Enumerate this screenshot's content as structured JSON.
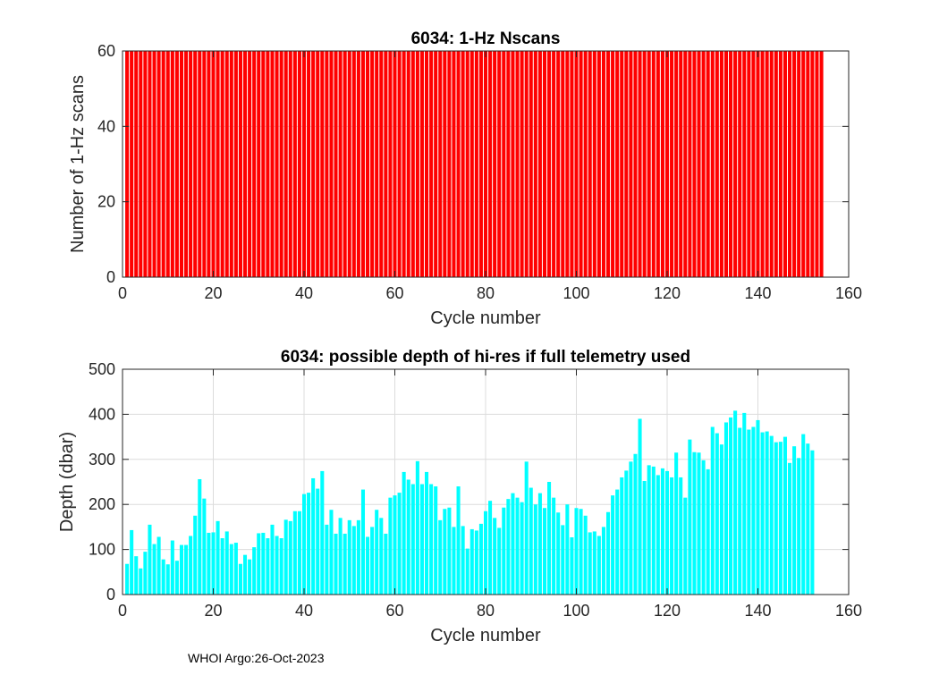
{
  "chart_data": [
    {
      "type": "bar",
      "title": "6034: 1-Hz Nscans",
      "xlabel": "Cycle number",
      "ylabel": "Number of 1-Hz scans",
      "xlim": [
        0,
        160
      ],
      "ylim": [
        0,
        60
      ],
      "xticks": [
        0,
        20,
        40,
        60,
        80,
        100,
        120,
        140,
        160
      ],
      "yticks": [
        0,
        20,
        40,
        60
      ],
      "grid": true,
      "color": "#ff0000",
      "n_cycles": 154,
      "constant_value": 60
    },
    {
      "type": "bar",
      "title": "6034: possible depth of hi-res if full telemetry used",
      "xlabel": "Cycle number",
      "ylabel": "Depth (dbar)",
      "xlim": [
        0,
        160
      ],
      "ylim": [
        0,
        500
      ],
      "xticks": [
        0,
        20,
        40,
        60,
        80,
        100,
        120,
        140,
        160
      ],
      "yticks": [
        0,
        100,
        200,
        300,
        400,
        500
      ],
      "grid": true,
      "color": "#00ffff",
      "values": [
        68,
        143,
        85,
        58,
        95,
        155,
        112,
        128,
        78,
        67,
        120,
        75,
        110,
        110,
        130,
        175,
        256,
        213,
        137,
        138,
        163,
        125,
        140,
        112,
        115,
        68,
        88,
        78,
        105,
        136,
        137,
        125,
        155,
        130,
        125,
        166,
        163,
        185,
        185,
        223,
        226,
        258,
        235,
        274,
        155,
        188,
        135,
        170,
        135,
        165,
        152,
        165,
        233,
        128,
        150,
        188,
        170,
        135,
        215,
        220,
        226,
        272,
        255,
        245,
        296,
        245,
        272,
        245,
        240,
        165,
        190,
        193,
        150,
        240,
        152,
        102,
        145,
        142,
        157,
        185,
        208,
        170,
        148,
        193,
        212,
        225,
        215,
        205,
        295,
        237,
        200,
        225,
        192,
        250,
        215,
        182,
        154,
        200,
        127,
        192,
        190,
        175,
        138,
        140,
        130,
        150,
        183,
        220,
        233,
        260,
        275,
        295,
        312,
        390,
        252,
        287,
        284,
        265,
        280,
        274,
        260,
        315,
        260,
        215,
        344,
        316,
        315,
        298,
        278,
        372,
        358,
        333,
        382,
        393,
        408,
        370,
        403,
        366,
        372,
        387,
        360,
        362,
        352,
        338,
        339,
        350,
        292,
        329,
        303,
        356,
        335,
        320
      ]
    }
  ],
  "footer": "WHOI Argo:26-Oct-2023"
}
